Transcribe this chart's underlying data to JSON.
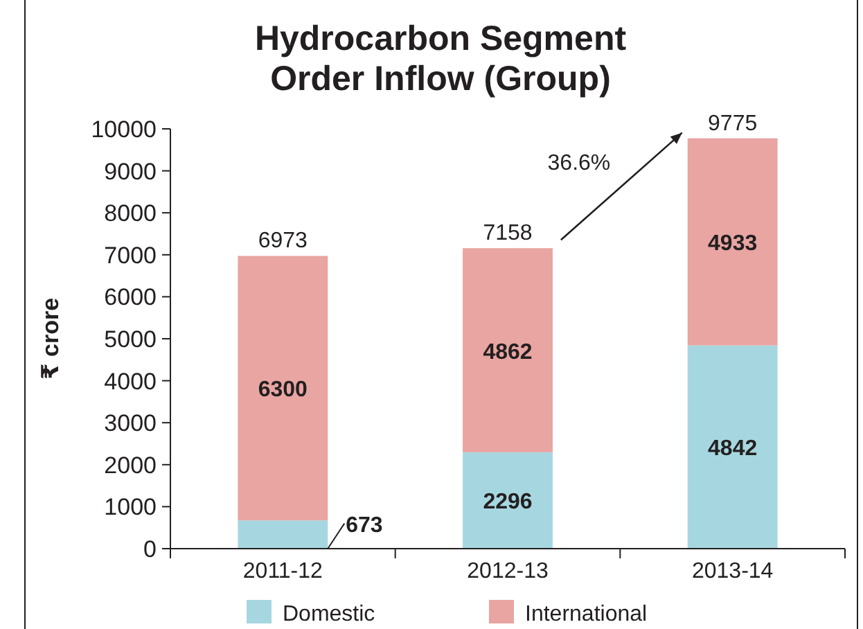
{
  "chart_data": {
    "type": "bar",
    "title": "Hydrocarbon Segment Order Inflow (Group)",
    "ylabel": "₹ crore",
    "categories": [
      "2011-12",
      "2012-13",
      "2013-14"
    ],
    "series": [
      {
        "name": "Domestic",
        "color": "#a6d7e0",
        "values": [
          673,
          2296,
          4842
        ]
      },
      {
        "name": "International",
        "color": "#e8a5a2",
        "values": [
          6300,
          4862,
          4933
        ]
      }
    ],
    "stacked": true,
    "data_labels": true,
    "totals": [
      "6973",
      "7158",
      "9775"
    ],
    "ylim": [
      0,
      10000
    ],
    "yticks": [
      0,
      1000,
      2000,
      3000,
      4000,
      5000,
      6000,
      7000,
      8000,
      9000,
      10000
    ],
    "grid": false,
    "legend": "bottom",
    "annotations": [
      "36.6%"
    ]
  }
}
